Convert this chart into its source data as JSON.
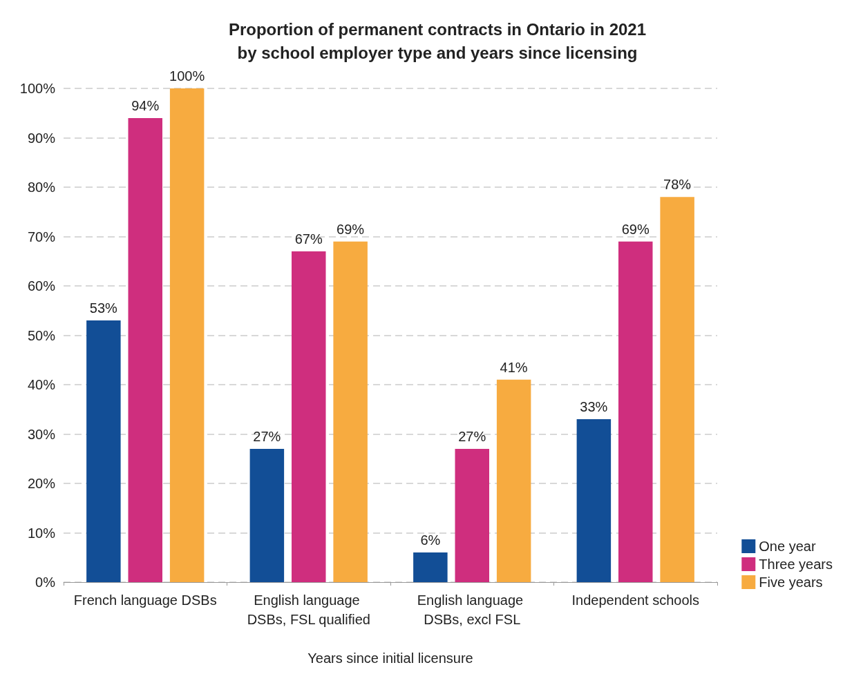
{
  "chart_data": {
    "type": "bar",
    "title": "Proportion of permanent contracts in Ontario in 2021\nby school employer type and years since licensing",
    "xlabel": "Years since initial licensure",
    "categories": [
      "French language DSBs",
      "English language DSBs, FSL qualified",
      "English language DSBs, excl FSL",
      "Independent schools"
    ],
    "series": [
      {
        "name": "One year",
        "color": "#124e96",
        "values": [
          53,
          27,
          6,
          33
        ],
        "value_labels": [
          "53%",
          "27%",
          "6%",
          "33%"
        ]
      },
      {
        "name": "Three years",
        "color": "#cf2e7e",
        "values": [
          94,
          67,
          27,
          69
        ],
        "value_labels": [
          "94%",
          "67%",
          "27%",
          "69%"
        ]
      },
      {
        "name": "Five years",
        "color": "#f7ab40",
        "values": [
          100,
          69,
          41,
          78
        ],
        "value_labels": [
          "100%",
          "69%",
          "41%",
          "78%"
        ]
      }
    ],
    "ylim": [
      0,
      100
    ],
    "yticks": [
      {
        "value": 0,
        "label": "0%"
      },
      {
        "value": 10,
        "label": "10%"
      },
      {
        "value": 20,
        "label": "20%"
      },
      {
        "value": 30,
        "label": "30%"
      },
      {
        "value": 40,
        "label": "40%"
      },
      {
        "value": 50,
        "label": "50%"
      },
      {
        "value": 60,
        "label": "60%"
      },
      {
        "value": 70,
        "label": "70%"
      },
      {
        "value": 80,
        "label": "80%"
      },
      {
        "value": 90,
        "label": "90%"
      },
      {
        "value": 100,
        "label": "100%"
      }
    ],
    "grid": "y",
    "legend": "bottom right"
  }
}
